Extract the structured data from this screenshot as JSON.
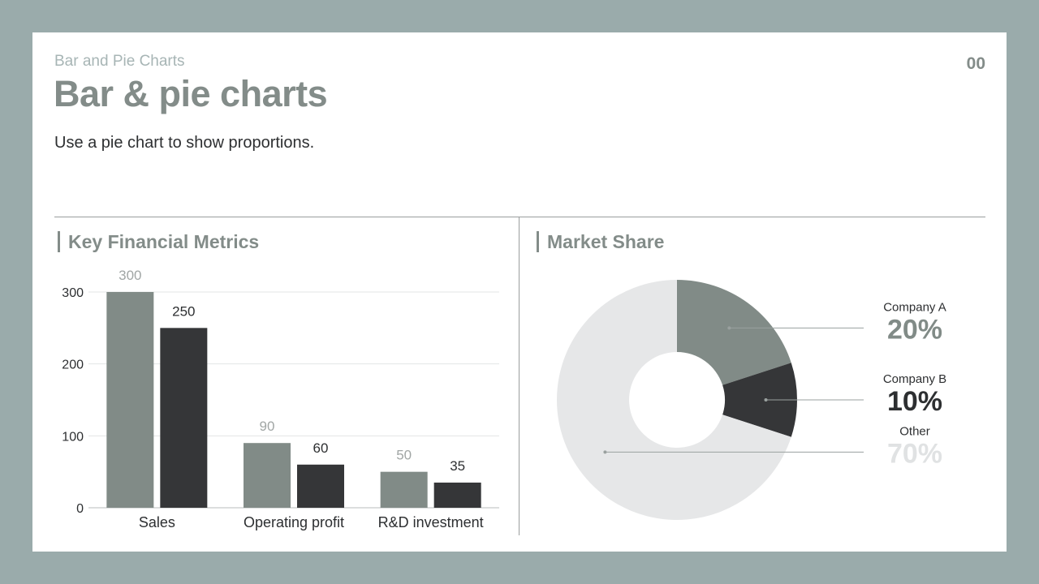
{
  "header": {
    "eyebrow": "Bar and Pie Charts",
    "title": "Bar & pie charts",
    "subtitle": "Use a pie chart to show proportions.",
    "page_number": "00"
  },
  "colors": {
    "accent_gray": "#818b87",
    "dark": "#353638",
    "light": "#e6e7e8",
    "gridline": "#e3e5e5"
  },
  "chart_data": [
    {
      "type": "bar",
      "title": "Key Financial Metrics",
      "categories": [
        "Sales",
        "Operating profit",
        "R&D investment"
      ],
      "series": [
        {
          "values": [
            300,
            90,
            50
          ],
          "color": "#818b87",
          "label_color": "#a1a6a5"
        },
        {
          "values": [
            250,
            60,
            35
          ],
          "color": "#353638",
          "label_color": "#2d2f31"
        }
      ],
      "ylim": [
        0,
        300
      ],
      "yticks": [
        0,
        100,
        200,
        300
      ],
      "grid": true,
      "xlabel": "",
      "ylabel": ""
    },
    {
      "type": "pie",
      "title": "Market Share",
      "donut": true,
      "slices": [
        {
          "name": "Company A",
          "value": 20,
          "label": "20%",
          "color": "#818b87",
          "label_color": "#818b87"
        },
        {
          "name": "Company B",
          "value": 10,
          "label": "10%",
          "color": "#353638",
          "label_color": "#2d2f31"
        },
        {
          "name": "Other",
          "value": 70,
          "label": "70%",
          "color": "#e6e7e8",
          "label_color": "#e0e2e3"
        }
      ]
    }
  ]
}
